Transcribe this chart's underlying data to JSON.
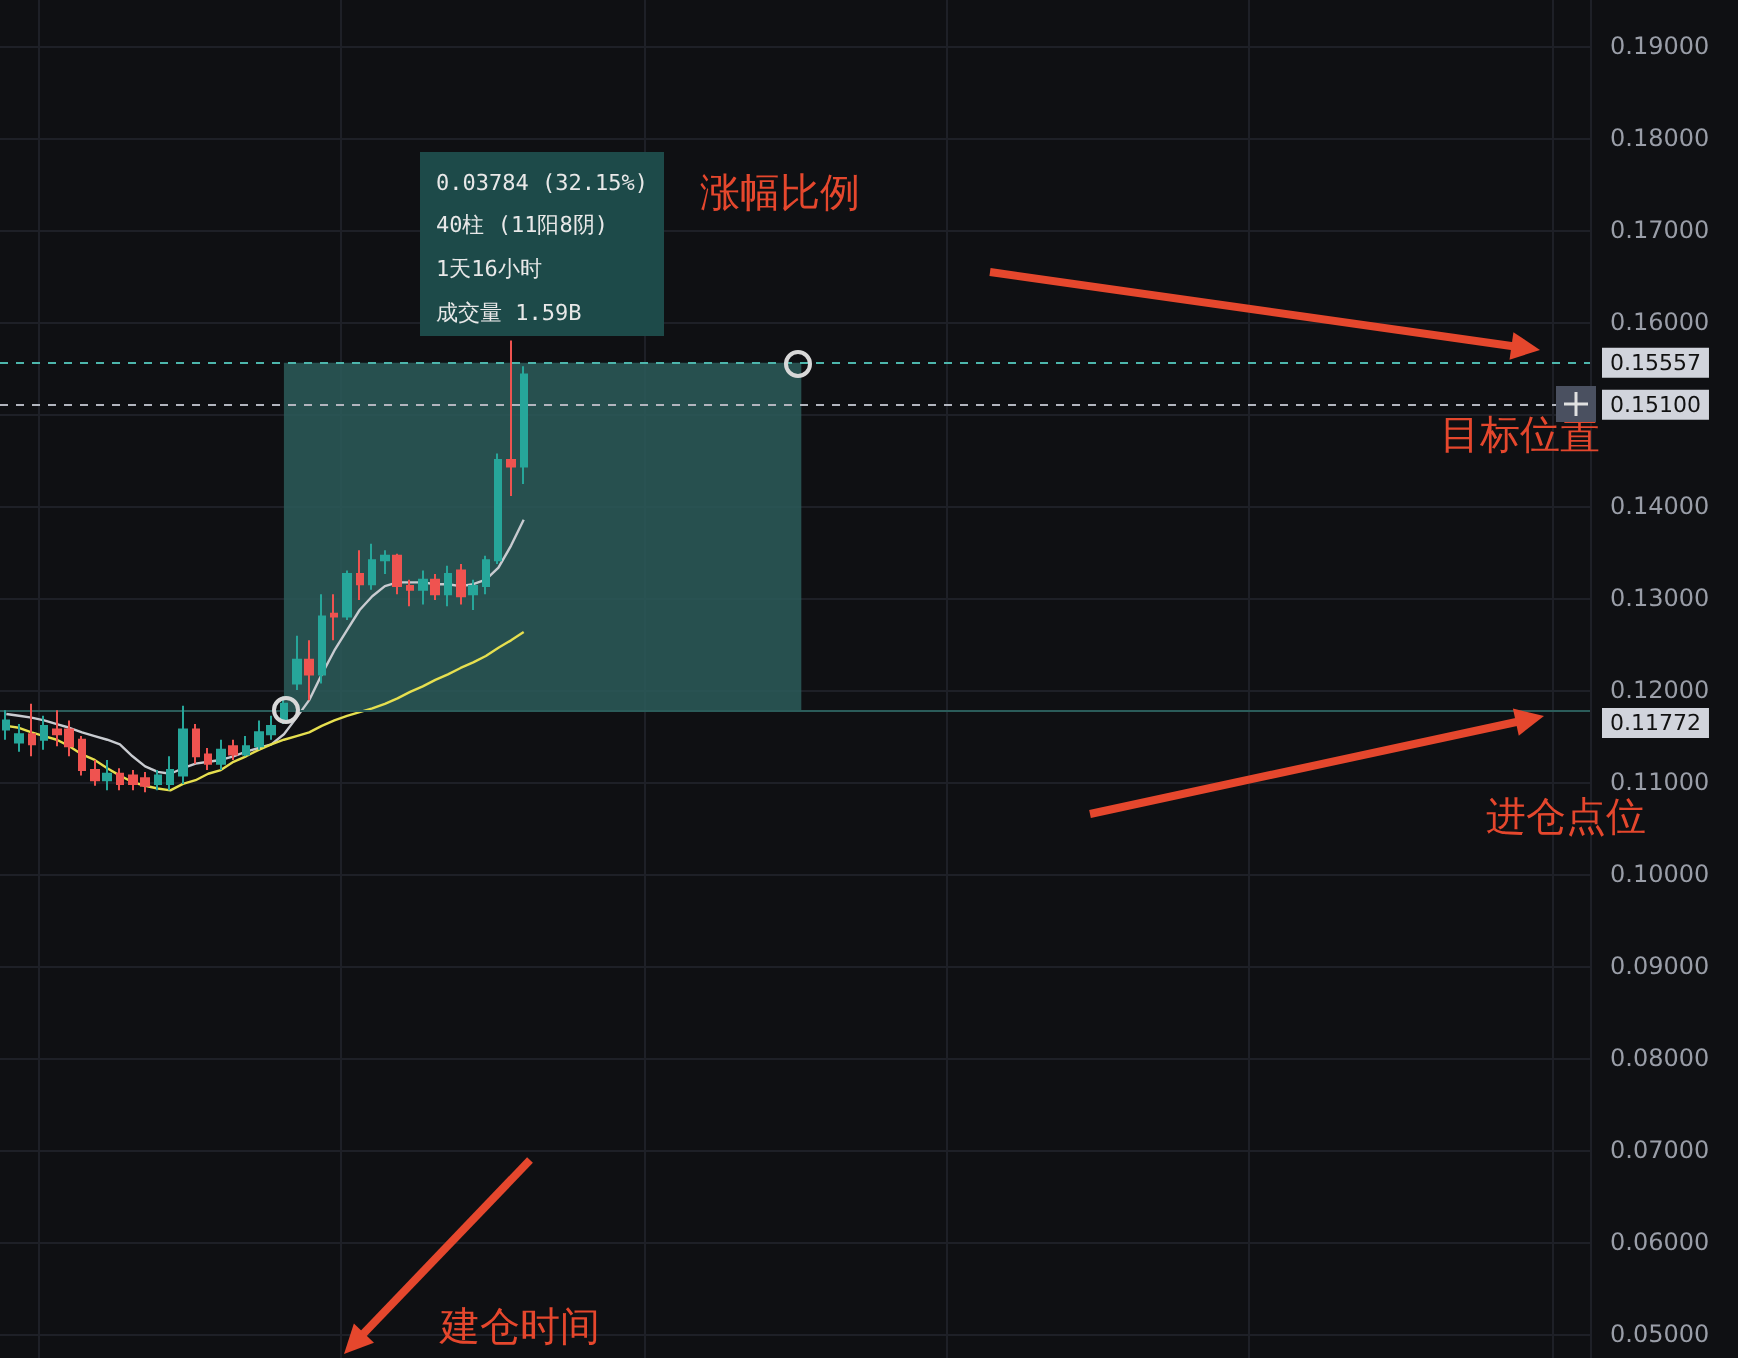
{
  "chart_data": {
    "type": "candlestick",
    "categories": [
      null,
      null,
      null,
      null,
      null,
      null,
      null,
      null,
      null,
      null,
      null,
      null,
      null,
      null,
      null,
      null,
      null,
      null,
      null,
      null,
      null,
      null,
      null,
      null,
      null,
      null,
      null,
      null,
      null,
      null,
      null,
      null,
      null,
      null,
      null,
      null,
      null,
      null,
      null,
      null,
      null,
      null,
      null,
      null,
      null,
      null,
      null,
      null,
      null,
      null,
      null,
      null,
      null,
      null,
      null,
      null,
      null,
      null,
      null,
      null,
      null,
      null,
      null,
      null,
      null,
      null,
      null,
      null,
      null,
      null,
      null,
      null,
      null,
      null,
      null,
      null,
      null,
      null,
      null,
      null,
      null,
      null,
      null,
      null,
      null,
      null,
      null,
      null,
      null,
      null,
      null,
      null,
      null,
      null,
      null,
      null,
      null,
      null,
      null,
      null,
      null,
      null,
      null,
      null,
      null,
      null,
      null,
      null,
      null,
      null,
      null,
      null,
      null,
      null,
      null,
      null,
      null,
      null,
      null,
      null,
      null,
      null,
      null,
      null,
      null,
      null
    ],
    "ohlc": [
      [
        0.1157,
        0.1178,
        0.1146,
        0.1167
      ],
      [
        0.1143,
        0.1163,
        0.1133,
        0.1152
      ],
      [
        0.1152,
        0.1185,
        0.1128,
        0.1141
      ],
      [
        0.1146,
        0.1172,
        0.1135,
        0.1161
      ],
      [
        0.1157,
        0.1178,
        0.1139,
        0.1152
      ],
      [
        0.1157,
        0.1167,
        0.1128,
        0.1139
      ],
      [
        0.1146,
        0.115,
        0.1107,
        0.1113
      ],
      [
        0.1113,
        0.1124,
        0.1096,
        0.1102
      ],
      [
        0.1102,
        0.1124,
        0.1091,
        0.1109
      ],
      [
        0.1109,
        0.1115,
        0.1091,
        0.1098
      ],
      [
        0.1107,
        0.1113,
        0.1091,
        0.1098
      ],
      [
        0.1104,
        0.1111,
        0.1089,
        0.1096
      ],
      [
        0.1098,
        0.1113,
        0.1091,
        0.1107
      ],
      [
        0.1098,
        0.1128,
        0.1091,
        0.1113
      ],
      [
        0.1107,
        0.1183,
        0.1098,
        0.1157
      ],
      [
        0.1157,
        0.1163,
        0.112,
        0.1128
      ],
      [
        0.113,
        0.1137,
        0.1113,
        0.112
      ],
      [
        0.112,
        0.1146,
        0.1113,
        0.1135
      ],
      [
        0.1139,
        0.1146,
        0.1124,
        0.113
      ],
      [
        0.113,
        0.115,
        0.1128,
        0.1139
      ],
      [
        0.1139,
        0.1167,
        0.1135,
        0.1154
      ],
      [
        0.1152,
        0.1172,
        0.1146,
        0.1161
      ],
      [
        0.1167,
        0.1193,
        0.1163,
        0.1185
      ],
      [
        0.1207,
        0.1259,
        0.12,
        0.1233
      ],
      [
        0.1233,
        0.1254,
        0.1189,
        0.1217
      ],
      [
        0.1217,
        0.1304,
        0.1207,
        0.128
      ],
      [
        0.1283,
        0.1304,
        0.1254,
        0.128
      ],
      [
        0.128,
        0.133,
        0.1276,
        0.1326
      ],
      [
        0.1326,
        0.1352,
        0.1298,
        0.1315
      ],
      [
        0.1315,
        0.1359,
        0.1309,
        0.1341
      ],
      [
        0.1341,
        0.1352,
        0.1326,
        0.1346
      ],
      [
        0.1346,
        0.1348,
        0.1304,
        0.1313
      ],
      [
        0.1313,
        0.132,
        0.1291,
        0.1309
      ],
      [
        0.1309,
        0.133,
        0.1293,
        0.132
      ],
      [
        0.132,
        0.1326,
        0.1298,
        0.1304
      ],
      [
        0.1304,
        0.1335,
        0.1291,
        0.1326
      ],
      [
        0.133,
        0.1337,
        0.1293,
        0.1302
      ],
      [
        0.1304,
        0.132,
        0.1287,
        0.1313
      ],
      [
        0.1313,
        0.1346,
        0.1304,
        0.1341
      ],
      [
        0.1341,
        0.1457,
        0.1337,
        0.145
      ],
      [
        0.145,
        0.158,
        0.1411,
        0.1443
      ],
      [
        0.1443,
        0.1552,
        0.1424,
        0.1543
      ],
      null,
      null,
      null,
      null,
      null,
      null,
      null,
      null,
      null,
      null,
      null,
      null,
      null,
      null,
      null,
      null,
      null,
      null,
      null,
      null,
      null,
      null,
      null,
      null,
      null,
      null,
      null,
      null,
      null,
      null,
      null,
      null,
      null,
      null,
      null,
      null,
      null,
      null,
      null,
      null,
      null,
      null,
      null,
      null,
      null,
      null,
      null,
      null,
      null,
      null,
      null,
      null,
      null,
      null,
      null,
      null,
      null,
      null,
      null,
      null,
      null,
      null,
      null,
      null,
      null,
      null,
      null,
      null,
      null,
      null,
      null,
      null,
      null,
      null,
      null,
      null,
      null,
      null,
      null,
      null,
      null,
      null,
      null,
      null
    ],
    "colors": [
      "#26a69a",
      "#26a69a",
      "#ef5350",
      "#26a69a",
      "#ef5350",
      "#ef5350",
      "#ef5350",
      "#ef5350",
      "#26a69a",
      "#ef5350",
      "#ef5350",
      "#ef5350",
      "#26a69a",
      "#26a69a",
      "#26a69a",
      "#ef5350",
      "#ef5350",
      "#26a69a",
      "#ef5350",
      "#26a69a",
      "#26a69a",
      "#26a69a",
      "#26a69a",
      "#26a69a",
      "#ef5350",
      "#26a69a",
      "#ef5350",
      "#26a69a",
      "#ef5350",
      "#26a69a",
      "#26a69a",
      "#ef5350",
      "#ef5350",
      "#26a69a",
      "#ef5350",
      "#26a69a",
      "#ef5350",
      "#26a69a",
      "#26a69a",
      "#26a69a",
      "#ef5350",
      "#26a69a",
      null,
      null,
      null,
      null,
      null,
      null,
      null,
      null,
      null,
      null,
      null,
      null,
      null,
      null,
      null,
      null,
      null,
      null,
      null,
      null,
      null,
      null,
      null,
      null,
      null,
      null,
      null,
      null,
      null,
      null,
      null,
      null,
      null,
      null,
      null,
      null,
      null,
      null,
      null,
      null,
      null,
      null,
      null,
      null,
      null,
      null,
      null,
      null,
      null,
      null,
      null,
      null,
      null,
      null,
      null,
      null,
      null,
      null,
      null,
      null,
      null,
      null,
      null,
      null,
      null,
      null,
      null,
      null,
      null,
      null,
      null,
      null,
      null,
      null,
      null,
      null,
      null,
      null,
      null,
      null,
      null,
      null,
      null,
      null
    ],
    "series": [
      {
        "type": "line",
        "color": "#c8cbd0",
        "values": [
          0.1174,
          0.1172,
          0.117,
          0.1167,
          0.1163,
          0.1159,
          0.1154,
          0.115,
          0.1146,
          0.1141,
          0.1128,
          0.1117,
          0.1111,
          0.1109,
          0.1115,
          0.112,
          0.1122,
          0.1124,
          0.1128,
          0.1133,
          0.1137,
          0.1141,
          0.1152,
          0.117,
          0.1189,
          0.1217,
          0.1243,
          0.1265,
          0.1287,
          0.1302,
          0.1313,
          0.1317,
          0.1317,
          0.1317,
          0.1315,
          0.1315,
          0.1313,
          0.1315,
          0.132,
          0.1333,
          0.1357,
          0.1385,
          null,
          null,
          null,
          null,
          null,
          null,
          null,
          null,
          null,
          null,
          null,
          null,
          null,
          null,
          null,
          null,
          null,
          null,
          null,
          null,
          null,
          null,
          null,
          null,
          null,
          null,
          null,
          null,
          null,
          null,
          null,
          null,
          null,
          null,
          null,
          null,
          null,
          null,
          null,
          null,
          null,
          null,
          null,
          null,
          null,
          null,
          null,
          null,
          null,
          null,
          null,
          null,
          null,
          null,
          null,
          null,
          null,
          null,
          null,
          null,
          null,
          null,
          null,
          null,
          null,
          null,
          null,
          null,
          null,
          null,
          null,
          null,
          null,
          null,
          null,
          null,
          null,
          null,
          null,
          null,
          null,
          null,
          null,
          null
        ]
      },
      {
        "type": "line",
        "color": "#e6df4f",
        "values": [
          0.1161,
          0.1159,
          0.1154,
          0.115,
          0.1146,
          0.1139,
          0.113,
          0.1124,
          0.1115,
          0.1107,
          0.11,
          0.1096,
          0.1093,
          0.1091,
          0.1098,
          0.1102,
          0.1109,
          0.1113,
          0.1122,
          0.1128,
          0.1135,
          0.1141,
          0.1146,
          0.115,
          0.1154,
          0.1161,
          0.1167,
          0.1172,
          0.1176,
          0.118,
          0.1185,
          0.1191,
          0.1198,
          0.1204,
          0.1211,
          0.1217,
          0.1224,
          0.123,
          0.1237,
          0.1246,
          0.1254,
          0.1263,
          null,
          null,
          null,
          null,
          null,
          null,
          null,
          null,
          null,
          null,
          null,
          null,
          null,
          null,
          null,
          null,
          null,
          null,
          null,
          null,
          null,
          null,
          null,
          null,
          null,
          null,
          null,
          null,
          null,
          null,
          null,
          null,
          null,
          null,
          null,
          null,
          null,
          null,
          null,
          null,
          null,
          null,
          null,
          null,
          null,
          null,
          null,
          null,
          null,
          null,
          null,
          null,
          null,
          null,
          null,
          null,
          null,
          null,
          null,
          null,
          null,
          null,
          null,
          null,
          null,
          null,
          null,
          null,
          null,
          null,
          null,
          null,
          null,
          null,
          null,
          null,
          null,
          null,
          null,
          null,
          null,
          null,
          null,
          null
        ]
      }
    ],
    "ylim": [
      0.0474,
      0.195
    ],
    "yticks": [
      {
        "value": 0.05,
        "label": "0.05000"
      },
      {
        "value": 0.06,
        "label": "0.06000"
      },
      {
        "value": 0.07,
        "label": "0.07000"
      },
      {
        "value": 0.08,
        "label": "0.08000"
      },
      {
        "value": 0.09,
        "label": "0.09000"
      },
      {
        "value": 0.1,
        "label": "0.10000"
      },
      {
        "value": 0.11,
        "label": "0.11000"
      },
      {
        "value": 0.12,
        "label": "0.12000"
      },
      {
        "value": 0.13,
        "label": "0.13000"
      },
      {
        "value": 0.14,
        "label": "0.14000"
      },
      {
        "value": 0.15,
        "label": null
      },
      {
        "value": 0.16,
        "label": "0.16000"
      },
      {
        "value": 0.17,
        "label": "0.17000"
      },
      {
        "value": 0.18,
        "label": "0.18000"
      },
      {
        "value": 0.19,
        "label": "0.19000"
      }
    ],
    "tick_labels": "y",
    "grid": true,
    "ref_lines": [
      {
        "axis": "y",
        "value": 0.15557,
        "label": "0.15557",
        "color": "#4db6ac",
        "line_style": "dashed"
      },
      {
        "axis": "y",
        "value": 0.151,
        "label": "0.15100",
        "color": "#b2b5be",
        "line_style": "dashed"
      },
      {
        "axis": "y",
        "value": 0.11772,
        "label": "0.11772",
        "color": "#2b5c5a",
        "line_style": "solid"
      }
    ],
    "bands": [
      {
        "axis": "y",
        "from": 0.11772,
        "to": 0.15557,
        "color": "#2b5c5a"
      }
    ],
    "annotations": [
      "0.03784 (32.15%)",
      "40柱 (11阳8阴)",
      "1天16小时",
      "成交量 1.59B",
      "涨幅比例",
      "目标位置",
      "进仓点位",
      "建仓时间"
    ]
  }
}
